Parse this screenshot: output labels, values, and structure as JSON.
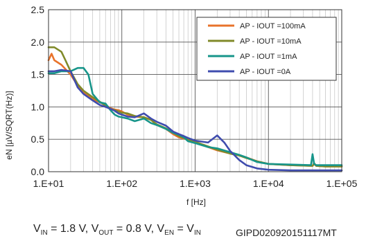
{
  "chart_data": {
    "type": "line",
    "xscale": "log",
    "xlim": [
      10,
      100000
    ],
    "ylim": [
      0,
      2.5
    ],
    "xlabel": "f [Hz]",
    "ylabel": "eN [µV/SQRT(Hz)]",
    "xticks": [
      10,
      100,
      1000,
      10000,
      100000
    ],
    "xtick_labels": [
      "1.E+01",
      "1.E+02",
      "1.E+03",
      "1.E+04",
      "1.E+05"
    ],
    "yticks": [
      0,
      0.5,
      1.0,
      1.5,
      2.0,
      2.5
    ],
    "ytick_labels": [
      "0.0",
      "0.5",
      "1.0",
      "1.5",
      "2.0",
      "2.5"
    ],
    "grid": true,
    "legend_position": "top-right",
    "series": [
      {
        "name": "AP - IOUT =100mA",
        "color": "#e8732b",
        "x": [
          10,
          11,
          12,
          15,
          20,
          25,
          30,
          40,
          50,
          60,
          70,
          80,
          90,
          100,
          120,
          150,
          200,
          250,
          300,
          400,
          500,
          600,
          700,
          800,
          1000,
          1500,
          2000,
          3000,
          4000,
          5000,
          7000,
          10000,
          20000,
          40000,
          42000,
          45000,
          60000,
          100000
        ],
        "y": [
          1.72,
          1.82,
          1.72,
          1.65,
          1.5,
          1.33,
          1.22,
          1.12,
          1.07,
          1.03,
          0.98,
          0.96,
          0.95,
          0.93,
          0.88,
          0.85,
          0.84,
          0.8,
          0.72,
          0.66,
          0.58,
          0.53,
          0.51,
          0.5,
          0.46,
          0.38,
          0.33,
          0.28,
          0.25,
          0.22,
          0.16,
          0.12,
          0.1,
          0.09,
          0.12,
          0.09,
          0.08,
          0.08
        ]
      },
      {
        "name": "AP - IOUT =10mA",
        "color": "#808a2a",
        "x": [
          10,
          12,
          15,
          17,
          20,
          25,
          30,
          40,
          50,
          60,
          70,
          80,
          90,
          100,
          120,
          150,
          200,
          250,
          300,
          400,
          500,
          600,
          700,
          800,
          1000,
          1500,
          2000,
          3000,
          4000,
          5000,
          7000,
          10000,
          20000,
          40000,
          42000,
          45000,
          60000,
          100000
        ],
        "y": [
          1.92,
          1.92,
          1.85,
          1.72,
          1.55,
          1.35,
          1.25,
          1.15,
          1.08,
          1.02,
          0.97,
          0.95,
          0.93,
          0.91,
          0.9,
          0.86,
          0.84,
          0.8,
          0.73,
          0.67,
          0.6,
          0.55,
          0.52,
          0.5,
          0.46,
          0.39,
          0.34,
          0.28,
          0.25,
          0.21,
          0.16,
          0.12,
          0.1,
          0.09,
          0.13,
          0.09,
          0.08,
          0.08
        ]
      },
      {
        "name": "AP - IOUT =1mA",
        "color": "#17958a",
        "x": [
          10,
          12,
          15,
          20,
          25,
          30,
          35,
          40,
          50,
          60,
          70,
          80,
          90,
          100,
          120,
          150,
          200,
          250,
          300,
          400,
          500,
          600,
          700,
          800,
          1000,
          1500,
          2000,
          3000,
          4000,
          5000,
          7000,
          10000,
          20000,
          38000,
          40000,
          42000,
          45000,
          60000,
          100000
        ],
        "y": [
          1.52,
          1.52,
          1.55,
          1.55,
          1.6,
          1.6,
          1.5,
          1.2,
          1.07,
          1.05,
          0.95,
          0.88,
          0.85,
          0.84,
          0.82,
          0.78,
          0.82,
          0.75,
          0.72,
          0.66,
          0.6,
          0.57,
          0.53,
          0.47,
          0.44,
          0.38,
          0.36,
          0.3,
          0.26,
          0.22,
          0.15,
          0.12,
          0.11,
          0.1,
          0.27,
          0.12,
          0.1,
          0.1,
          0.1
        ]
      },
      {
        "name": "AP - IOUT =0A",
        "color": "#3f4cae",
        "x": [
          10,
          12,
          15,
          20,
          25,
          30,
          40,
          50,
          60,
          70,
          80,
          90,
          100,
          120,
          150,
          200,
          250,
          300,
          400,
          500,
          600,
          700,
          800,
          1000,
          1500,
          2000,
          2500,
          3000,
          4000,
          5000,
          7000,
          10000,
          20000,
          40000,
          60000,
          100000
        ],
        "y": [
          1.55,
          1.55,
          1.57,
          1.55,
          1.3,
          1.2,
          1.1,
          1.03,
          1.0,
          0.97,
          0.94,
          0.9,
          0.88,
          0.85,
          0.84,
          0.9,
          0.82,
          0.77,
          0.71,
          0.62,
          0.58,
          0.55,
          0.52,
          0.48,
          0.45,
          0.56,
          0.45,
          0.32,
          0.18,
          0.1,
          0.05,
          0.03,
          0.02,
          0.02,
          0.02,
          0.02
        ]
      }
    ]
  },
  "conditions": {
    "vin_label": "V",
    "vin_sub": "IN",
    "vin_value": " = 1.8 V, ",
    "vout_label": "V",
    "vout_sub": "OUT",
    "vout_value": " = 0.8 V, ",
    "ven_label": "V",
    "ven_sub": "EN",
    "ven_eq": " = V",
    "ven_eq_sub": "IN"
  },
  "figure_code": "GIPD020920151117MT"
}
